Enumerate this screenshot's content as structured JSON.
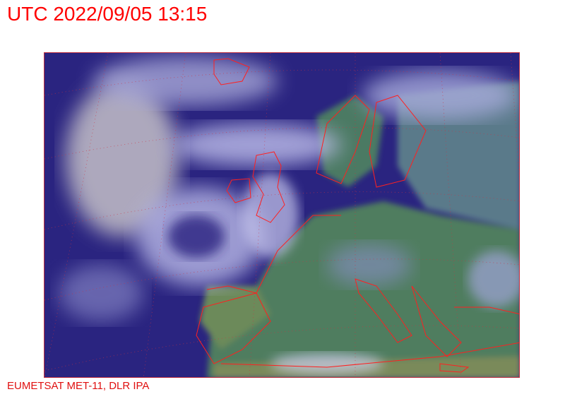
{
  "header": {
    "timestamp": "UTC 2022/09/05 13:15"
  },
  "footer": {
    "credit": "EUMETSAT MET-11, DLR IPA"
  },
  "map": {
    "type": "satellite-rgb-composite",
    "region": "Europe / North Atlantic",
    "colors": {
      "ocean": "#2a2480",
      "cloud": "#c8c8e8",
      "land": "#5a8a6a",
      "coastline": "#ff2020",
      "grid": "#d03040"
    }
  }
}
